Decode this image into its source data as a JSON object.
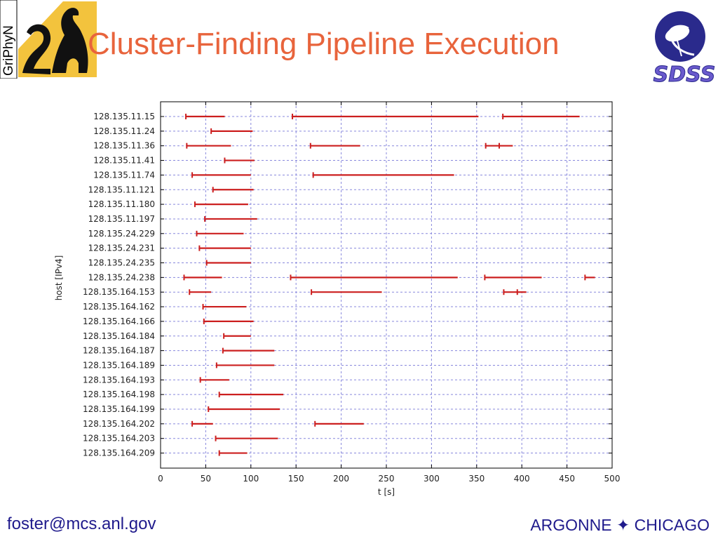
{
  "slide": {
    "title": "Cluster-Finding Pipeline Execution",
    "footer_email": "foster@mcs.anl.gov",
    "footer_org": "ARGONNE ✦ CHICAGO",
    "logo_left_text": "GriPhyN",
    "logo_right_text": "SDSS"
  },
  "colors": {
    "title": "#e8643c",
    "footer": "#1f1a8c",
    "bar": "#cc1f1f",
    "grid": "#8888dd"
  },
  "chart_data": {
    "type": "gantt",
    "xlabel": "t [s]",
    "ylabel": "host [IPv4]",
    "xlim": [
      0,
      500
    ],
    "xticks": [
      0,
      50,
      100,
      150,
      200,
      250,
      300,
      350,
      400,
      450,
      500
    ],
    "grid": true,
    "hosts": [
      {
        "name": "128.135.11.15",
        "intervals": [
          [
            28,
            71
          ],
          [
            146,
            352
          ],
          [
            379,
            464
          ]
        ]
      },
      {
        "name": "128.135.11.24",
        "intervals": [
          [
            56,
            102
          ]
        ]
      },
      {
        "name": "128.135.11.36",
        "intervals": [
          [
            29,
            78
          ],
          [
            166,
            221
          ],
          [
            360,
            375
          ],
          [
            375,
            390
          ]
        ]
      },
      {
        "name": "128.135.11.41",
        "intervals": [
          [
            71,
            104
          ]
        ]
      },
      {
        "name": "128.135.11.74",
        "intervals": [
          [
            35,
            100
          ],
          [
            169,
            325
          ]
        ]
      },
      {
        "name": "128.135.11.121",
        "intervals": [
          [
            58,
            103
          ]
        ]
      },
      {
        "name": "128.135.11.180",
        "intervals": [
          [
            38,
            97
          ]
        ]
      },
      {
        "name": "128.135.11.197",
        "intervals": [
          [
            49,
            107
          ]
        ]
      },
      {
        "name": "128.135.24.229",
        "intervals": [
          [
            40,
            92
          ]
        ]
      },
      {
        "name": "128.135.24.231",
        "intervals": [
          [
            43,
            100
          ]
        ]
      },
      {
        "name": "128.135.24.235",
        "intervals": [
          [
            51,
            100
          ]
        ]
      },
      {
        "name": "128.135.24.238",
        "intervals": [
          [
            26,
            68
          ],
          [
            144,
            329
          ],
          [
            359,
            422
          ],
          [
            470,
            481
          ]
        ]
      },
      {
        "name": "128.135.164.153",
        "intervals": [
          [
            32,
            56
          ],
          [
            167,
            245
          ],
          [
            380,
            395
          ],
          [
            395,
            405
          ]
        ]
      },
      {
        "name": "128.135.164.162",
        "intervals": [
          [
            47,
            95
          ]
        ]
      },
      {
        "name": "128.135.164.166",
        "intervals": [
          [
            48,
            103
          ]
        ]
      },
      {
        "name": "128.135.164.184",
        "intervals": [
          [
            70,
            100
          ]
        ]
      },
      {
        "name": "128.135.164.187",
        "intervals": [
          [
            69,
            126
          ]
        ]
      },
      {
        "name": "128.135.164.189",
        "intervals": [
          [
            62,
            126
          ]
        ]
      },
      {
        "name": "128.135.164.193",
        "intervals": [
          [
            44,
            76
          ]
        ]
      },
      {
        "name": "128.135.164.198",
        "intervals": [
          [
            65,
            136
          ]
        ]
      },
      {
        "name": "128.135.164.199",
        "intervals": [
          [
            53,
            132
          ]
        ]
      },
      {
        "name": "128.135.164.202",
        "intervals": [
          [
            35,
            58
          ],
          [
            171,
            225
          ]
        ]
      },
      {
        "name": "128.135.164.203",
        "intervals": [
          [
            61,
            130
          ]
        ]
      },
      {
        "name": "128.135.164.209",
        "intervals": [
          [
            65,
            96
          ]
        ]
      }
    ]
  }
}
